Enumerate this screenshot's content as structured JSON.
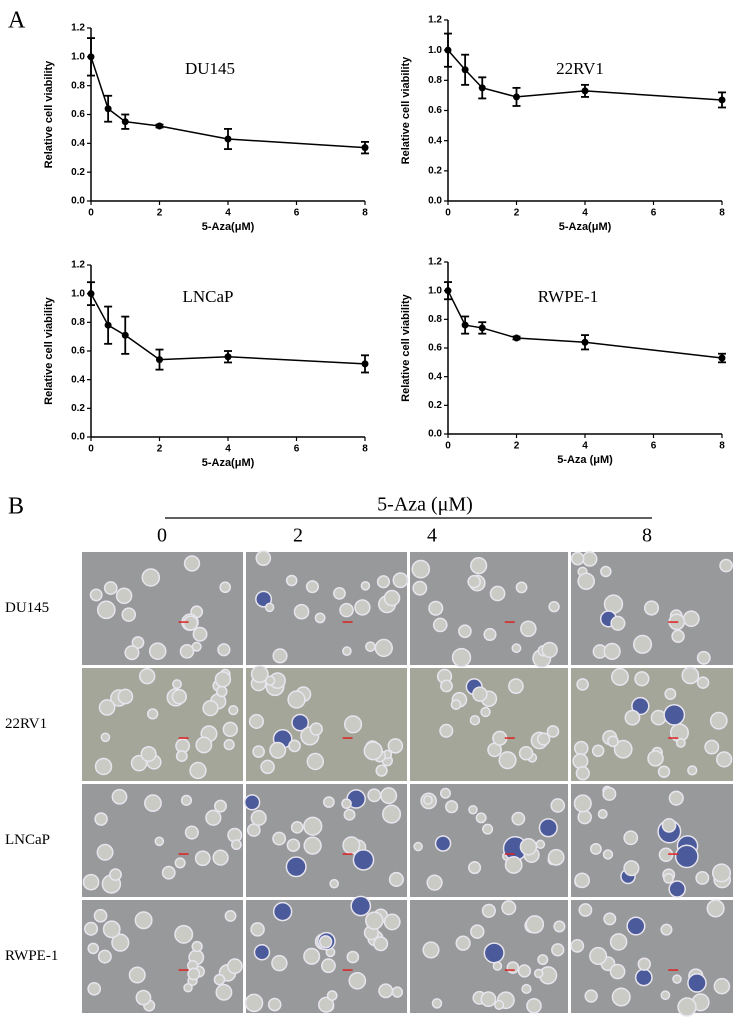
{
  "figure": {
    "panel_a_label": "A",
    "panel_b_label": "B"
  },
  "chart_data": [
    {
      "type": "line",
      "title": "DU145",
      "x_label": "5-Aza(μM)",
      "y_label": "Relative cell viability",
      "color": "#000000",
      "x": [
        0,
        0.5,
        1,
        2,
        4,
        8
      ],
      "values": [
        1.0,
        0.64,
        0.55,
        0.52,
        0.43,
        0.37
      ],
      "errors": [
        0.13,
        0.09,
        0.05,
        0.01,
        0.07,
        0.04
      ],
      "xlim": [
        0,
        8
      ],
      "xticks": [
        0,
        2,
        4,
        6,
        8
      ],
      "ylim": [
        0,
        1.2
      ],
      "yticks": [
        {
          "value": 0,
          "label": "0.0"
        },
        0.2,
        0.4,
        0.6,
        0.8,
        {
          "value": 1,
          "label": "1.0"
        },
        1.2
      ]
    },
    {
      "type": "line",
      "title": "22RV1",
      "x_label": "5-Aza(μM)",
      "y_label": "Relative cell viability",
      "color": "#000000",
      "x": [
        0,
        0.5,
        1,
        2,
        4,
        8
      ],
      "values": [
        1.0,
        0.87,
        0.75,
        0.69,
        0.73,
        0.67
      ],
      "errors": [
        0.11,
        0.1,
        0.07,
        0.06,
        0.04,
        0.05
      ],
      "xlim": [
        0,
        8
      ],
      "xticks": [
        0,
        2,
        4,
        6,
        8
      ],
      "ylim": [
        0,
        1.2
      ],
      "yticks": [
        {
          "value": 0,
          "label": "0.0"
        },
        0.2,
        0.4,
        0.6,
        0.8,
        {
          "value": 1,
          "label": "1.0"
        },
        1.2
      ]
    },
    {
      "type": "line",
      "title": "LNCaP",
      "x_label": "5-Aza(μM)",
      "y_label": "Relative cell viability",
      "color": "#000000",
      "x": [
        0,
        0.5,
        1,
        2,
        4,
        8
      ],
      "values": [
        1.0,
        0.78,
        0.71,
        0.54,
        0.56,
        0.51
      ],
      "errors": [
        0.08,
        0.13,
        0.13,
        0.07,
        0.04,
        0.06
      ],
      "xlim": [
        0,
        8
      ],
      "xticks": [
        0,
        2,
        4,
        6,
        8
      ],
      "ylim": [
        0,
        1.2
      ],
      "yticks": [
        {
          "value": 0,
          "label": "0.0"
        },
        0.2,
        0.4,
        0.6,
        0.8,
        {
          "value": 1,
          "label": "1.0"
        },
        1.2
      ]
    },
    {
      "type": "line",
      "title": "RWPE-1",
      "x_label": "5-Aza (μM)",
      "y_label": "Relative cell viability",
      "color": "#000000",
      "x": [
        0,
        0.5,
        1,
        2,
        4,
        8
      ],
      "values": [
        1.0,
        0.76,
        0.74,
        0.67,
        0.64,
        0.53
      ],
      "errors": [
        0.06,
        0.06,
        0.04,
        0.01,
        0.05,
        0.03
      ],
      "xlim": [
        0,
        8
      ],
      "xticks": [
        0,
        2,
        4,
        6,
        8
      ],
      "ylim": [
        0,
        1.2
      ],
      "yticks": [
        {
          "value": 0,
          "label": "0.0"
        },
        0.2,
        0.4,
        0.6,
        0.8,
        {
          "value": 1,
          "label": "1.0"
        },
        1.2
      ]
    }
  ],
  "panel_b": {
    "title": "5-Aza (μM)",
    "columns": [
      "0",
      "2",
      "4",
      "8"
    ],
    "rows": [
      "DU145",
      "22RV1",
      "LNCaP",
      "RWPE-1"
    ]
  }
}
